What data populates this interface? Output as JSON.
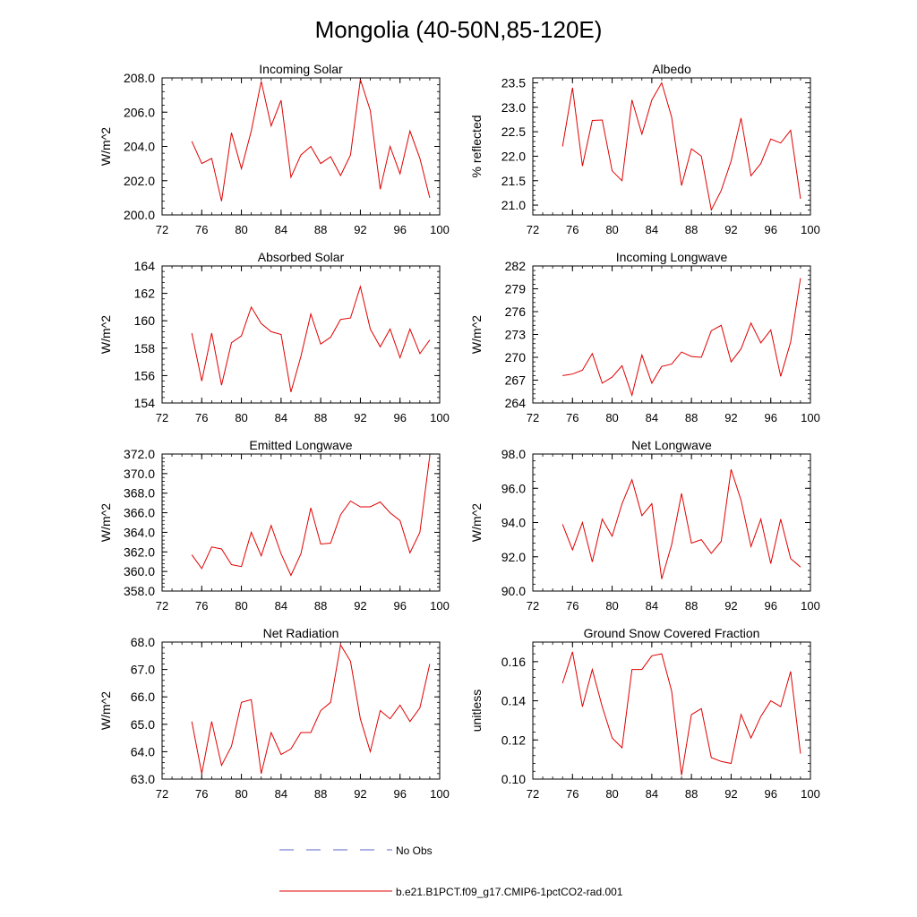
{
  "page_title": "Mongolia (40-50N,85-120E)",
  "legend": {
    "obs_label": "No Obs",
    "obs_color": "#5b64c8",
    "model_label": "b.e21.B1PCT.f09_g17.CMIP6-1pctCO2-rad.001",
    "model_color": "#e00000"
  },
  "chart_data": [
    {
      "type": "line",
      "title": "Incoming Solar",
      "ylabel": "W/m^2",
      "xlim": [
        72,
        100
      ],
      "ylim": [
        200,
        208
      ],
      "xticks": [
        "72",
        "76",
        "80",
        "84",
        "88",
        "92",
        "96",
        "100"
      ],
      "yticks": [
        "200.0",
        "202.0",
        "204.0",
        "206.0",
        "208.0"
      ],
      "x": [
        75,
        76,
        77,
        78,
        79,
        80,
        81,
        82,
        83,
        84,
        85,
        86,
        87,
        88,
        89,
        90,
        91,
        92,
        93,
        94,
        95,
        96,
        97,
        98,
        99
      ],
      "series": [
        {
          "name": "b.e21.B1PCT.f09_g17.CMIP6-1pctCO2-rad.001",
          "color": "#e00000",
          "values": [
            204.3,
            203.0,
            203.3,
            200.8,
            204.8,
            202.7,
            204.9,
            207.8,
            205.2,
            206.7,
            202.2,
            203.5,
            204.0,
            203.0,
            203.4,
            202.3,
            203.5,
            207.9,
            206.1,
            201.5,
            204.0,
            202.4,
            204.9,
            203.3,
            201.0
          ]
        }
      ]
    },
    {
      "type": "line",
      "title": "Albedo",
      "ylabel": "% reflected",
      "xlim": [
        72,
        100
      ],
      "ylim": [
        20.8,
        23.6
      ],
      "xticks": [
        "72",
        "76",
        "80",
        "84",
        "88",
        "92",
        "96",
        "100"
      ],
      "yticks": [
        "21.0",
        "21.5",
        "22.0",
        "22.5",
        "23.0",
        "23.5"
      ],
      "x": [
        75,
        76,
        77,
        78,
        79,
        80,
        81,
        82,
        83,
        84,
        85,
        86,
        87,
        88,
        89,
        90,
        91,
        92,
        93,
        94,
        95,
        96,
        97,
        98,
        99
      ],
      "series": [
        {
          "name": "b.e21.B1PCT.f09_g17.CMIP6-1pctCO2-rad.001",
          "color": "#e00000",
          "values": [
            22.2,
            23.4,
            21.8,
            22.73,
            22.74,
            21.7,
            21.5,
            23.15,
            22.45,
            23.15,
            23.5,
            22.8,
            21.4,
            22.15,
            22.0,
            20.9,
            21.3,
            21.9,
            22.78,
            21.6,
            21.85,
            22.35,
            22.27,
            22.53,
            21.13
          ]
        }
      ]
    },
    {
      "type": "line",
      "title": "Absorbed Solar",
      "ylabel": "W/m^2",
      "xlim": [
        72,
        100
      ],
      "ylim": [
        154,
        164
      ],
      "xticks": [
        "72",
        "76",
        "80",
        "84",
        "88",
        "92",
        "96",
        "100"
      ],
      "yticks": [
        "154",
        "156",
        "158",
        "160",
        "162",
        "164"
      ],
      "x": [
        75,
        76,
        77,
        78,
        79,
        80,
        81,
        82,
        83,
        84,
        85,
        86,
        87,
        88,
        89,
        90,
        91,
        92,
        93,
        94,
        95,
        96,
        97,
        98,
        99
      ],
      "series": [
        {
          "name": "b.e21.B1PCT.f09_g17.CMIP6-1pctCO2-rad.001",
          "color": "#e00000",
          "values": [
            159.1,
            155.6,
            159.1,
            155.3,
            158.4,
            158.9,
            161.0,
            159.8,
            159.2,
            159.0,
            154.8,
            157.4,
            160.5,
            158.3,
            158.8,
            160.1,
            160.2,
            162.5,
            159.4,
            158.1,
            159.4,
            157.3,
            159.4,
            157.6,
            158.6
          ]
        }
      ]
    },
    {
      "type": "line",
      "title": "Incoming Longwave",
      "ylabel": "W/m^2",
      "xlim": [
        72,
        100
      ],
      "ylim": [
        264,
        282
      ],
      "xticks": [
        "72",
        "76",
        "80",
        "84",
        "88",
        "92",
        "96",
        "100"
      ],
      "yticks": [
        "264",
        "267",
        "270",
        "273",
        "276",
        "279",
        "282"
      ],
      "x": [
        75,
        76,
        77,
        78,
        79,
        80,
        81,
        82,
        83,
        84,
        85,
        86,
        87,
        88,
        89,
        90,
        91,
        92,
        93,
        94,
        95,
        96,
        97,
        98,
        99
      ],
      "series": [
        {
          "name": "b.e21.B1PCT.f09_g17.CMIP6-1pctCO2-rad.001",
          "color": "#e00000",
          "values": [
            267.6,
            267.8,
            268.3,
            270.5,
            266.6,
            267.4,
            268.9,
            265.0,
            270.3,
            266.6,
            268.8,
            269.1,
            270.7,
            270.1,
            270.0,
            273.5,
            274.2,
            269.4,
            271.1,
            274.5,
            271.9,
            273.6,
            267.5,
            272.0,
            280.4
          ]
        }
      ]
    },
    {
      "type": "line",
      "title": "Emitted Longwave",
      "ylabel": "W/m^2",
      "xlim": [
        72,
        100
      ],
      "ylim": [
        358,
        372
      ],
      "xticks": [
        "72",
        "76",
        "80",
        "84",
        "88",
        "92",
        "96",
        "100"
      ],
      "yticks": [
        "358.0",
        "360.0",
        "362.0",
        "364.0",
        "366.0",
        "368.0",
        "370.0",
        "372.0"
      ],
      "x": [
        75,
        76,
        77,
        78,
        79,
        80,
        81,
        82,
        83,
        84,
        85,
        86,
        87,
        88,
        89,
        90,
        91,
        92,
        93,
        94,
        95,
        96,
        97,
        98,
        99
      ],
      "series": [
        {
          "name": "b.e21.B1PCT.f09_g17.CMIP6-1pctCO2-rad.001",
          "color": "#e00000",
          "values": [
            361.7,
            360.3,
            362.5,
            362.3,
            360.7,
            360.5,
            364.0,
            361.6,
            364.7,
            361.8,
            359.6,
            361.8,
            366.5,
            362.8,
            362.9,
            365.8,
            367.2,
            366.6,
            366.6,
            367.1,
            366.0,
            365.2,
            361.9,
            364.0,
            371.8
          ]
        }
      ]
    },
    {
      "type": "line",
      "title": "Net Longwave",
      "ylabel": "W/m^2",
      "xlim": [
        72,
        100
      ],
      "ylim": [
        90,
        98
      ],
      "xticks": [
        "72",
        "76",
        "80",
        "84",
        "88",
        "92",
        "96",
        "100"
      ],
      "yticks": [
        "90.0",
        "92.0",
        "94.0",
        "96.0",
        "98.0"
      ],
      "x": [
        75,
        76,
        77,
        78,
        79,
        80,
        81,
        82,
        83,
        84,
        85,
        86,
        87,
        88,
        89,
        90,
        91,
        92,
        93,
        94,
        95,
        96,
        97,
        98,
        99
      ],
      "series": [
        {
          "name": "b.e21.B1PCT.f09_g17.CMIP6-1pctCO2-rad.001",
          "color": "#e00000",
          "values": [
            93.9,
            92.4,
            94.0,
            91.7,
            94.2,
            93.2,
            95.1,
            96.5,
            94.4,
            95.1,
            90.7,
            92.7,
            95.7,
            92.8,
            93.0,
            92.2,
            92.9,
            97.1,
            95.3,
            92.6,
            94.2,
            91.6,
            94.2,
            91.9,
            91.4
          ]
        }
      ]
    },
    {
      "type": "line",
      "title": "Net Radiation",
      "ylabel": "W/m^2",
      "xlim": [
        72,
        100
      ],
      "ylim": [
        63,
        68
      ],
      "xticks": [
        "72",
        "76",
        "80",
        "84",
        "88",
        "92",
        "96",
        "100"
      ],
      "yticks": [
        "63.0",
        "64.0",
        "65.0",
        "66.0",
        "67.0",
        "68.0"
      ],
      "x": [
        75,
        76,
        77,
        78,
        79,
        80,
        81,
        82,
        83,
        84,
        85,
        86,
        87,
        88,
        89,
        90,
        91,
        92,
        93,
        94,
        95,
        96,
        97,
        98,
        99
      ],
      "series": [
        {
          "name": "b.e21.B1PCT.f09_g17.CMIP6-1pctCO2-rad.001",
          "color": "#e00000",
          "values": [
            65.1,
            63.2,
            65.1,
            63.5,
            64.2,
            65.8,
            65.9,
            63.2,
            64.7,
            63.9,
            64.1,
            64.7,
            64.7,
            65.5,
            65.8,
            67.9,
            67.3,
            65.2,
            64.0,
            65.5,
            65.2,
            65.7,
            65.1,
            65.6,
            67.2
          ]
        }
      ]
    },
    {
      "type": "line",
      "title": "Ground Snow Covered Fraction",
      "ylabel": "unitless",
      "xlim": [
        72,
        100
      ],
      "ylim": [
        0.1,
        0.17
      ],
      "xticks": [
        "72",
        "76",
        "80",
        "84",
        "88",
        "92",
        "96",
        "100"
      ],
      "yticks": [
        "0.10",
        "0.12",
        "0.14",
        "0.16"
      ],
      "x": [
        75,
        76,
        77,
        78,
        79,
        80,
        81,
        82,
        83,
        84,
        85,
        86,
        87,
        88,
        89,
        90,
        91,
        92,
        93,
        94,
        95,
        96,
        97,
        98,
        99
      ],
      "series": [
        {
          "name": "b.e21.B1PCT.f09_g17.CMIP6-1pctCO2-rad.001",
          "color": "#e00000",
          "values": [
            0.149,
            0.165,
            0.137,
            0.156,
            0.137,
            0.121,
            0.116,
            0.156,
            0.156,
            0.163,
            0.164,
            0.145,
            0.102,
            0.133,
            0.136,
            0.111,
            0.109,
            0.108,
            0.133,
            0.121,
            0.132,
            0.14,
            0.137,
            0.155,
            0.113
          ]
        }
      ]
    }
  ]
}
